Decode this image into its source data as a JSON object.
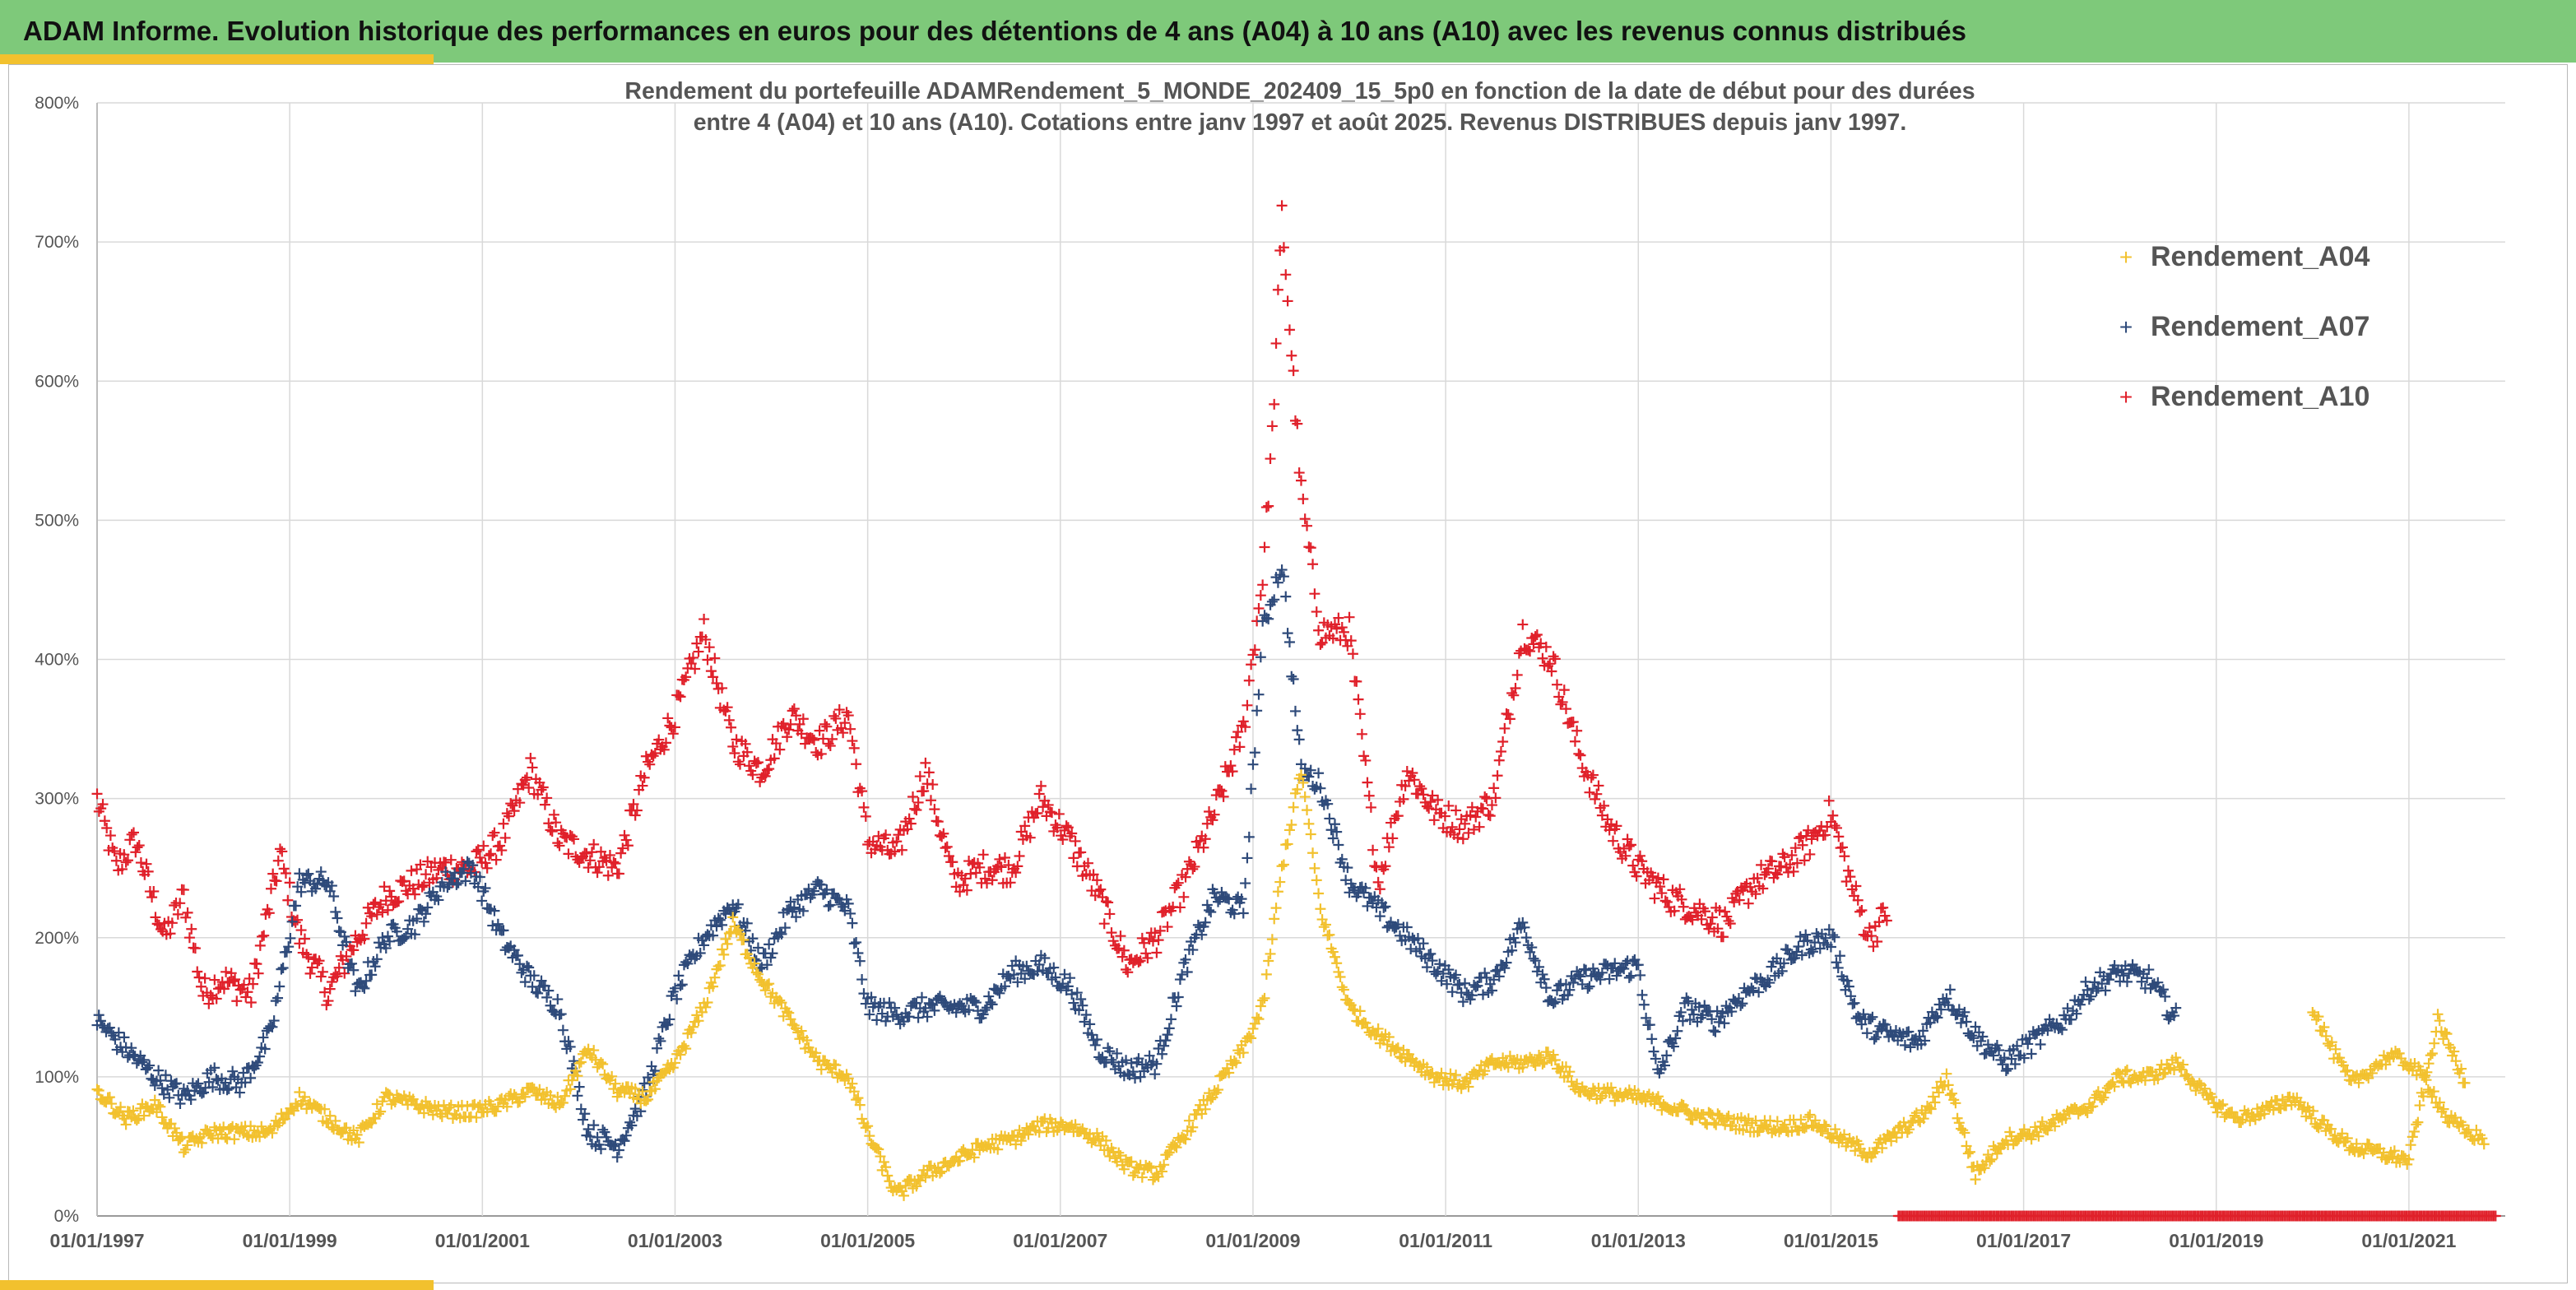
{
  "banner": {
    "title": "ADAM Informe. Evolution historique des performances en euros pour des détentions de 4 ans (A04) à 10 ans (A10) avec les revenus connus distribués"
  },
  "colors": {
    "banner_bg": "#7ec97a",
    "accent": "#f2c12e",
    "A04": "#f2c12e",
    "A07": "#2e4a7a",
    "A10": "#e0202a"
  },
  "chart_data": {
    "type": "scatter",
    "title_line1": "Rendement du portefeuille ADAMRendement_5_MONDE_202409_15_5p0  en fonction de la date de début pour des durées",
    "title_line2": "entre 4 (A04) et 10 ans (A10). Cotations entre janv 1997 et août 2025. Revenus DISTRIBUES depuis janv 1997.",
    "marker": "+",
    "xlim": [
      "01/01/1997",
      "31/12/2021"
    ],
    "x_tick_labels": [
      "01/01/1997",
      "01/01/1999",
      "01/01/2001",
      "01/01/2003",
      "01/01/2005",
      "01/01/2007",
      "01/01/2009",
      "01/01/2011",
      "01/01/2013",
      "01/01/2015",
      "01/01/2017",
      "01/01/2019",
      "01/01/2021"
    ],
    "ylim": [
      0,
      800
    ],
    "y_tick_labels": [
      "0%",
      "100%",
      "200%",
      "300%",
      "400%",
      "500%",
      "600%",
      "700%",
      "800%"
    ],
    "grid": true,
    "legend_position": "top-right",
    "series": [
      {
        "name": "Rendement_A04",
        "color": "#f2c12e",
        "x": [
          1997.0,
          1997.3,
          1997.6,
          1997.9,
          1998.2,
          1998.5,
          1998.8,
          1999.1,
          1999.4,
          1999.7,
          2000.0,
          2000.3,
          2000.6,
          2000.9,
          2001.2,
          2001.5,
          2001.8,
          2002.1,
          2002.4,
          2002.7,
          2003.0,
          2003.3,
          2003.6,
          2003.9,
          2004.2,
          2004.5,
          2004.8,
          2005.0,
          2005.3,
          2005.6,
          2005.9,
          2006.2,
          2006.5,
          2006.8,
          2007.1,
          2007.4,
          2007.7,
          2008.0,
          2008.3,
          2008.6,
          2008.9,
          2009.1,
          2009.3,
          2009.5,
          2009.7,
          2010.0,
          2010.3,
          2010.6,
          2010.9,
          2011.2,
          2011.5,
          2011.8,
          2012.1,
          2012.4,
          2012.7,
          2013.0,
          2013.3,
          2013.6,
          2013.9,
          2014.2,
          2014.5,
          2014.8,
          2015.1,
          2015.4,
          2015.7,
          2016.0,
          2016.2,
          2016.5,
          2016.8,
          2017.1,
          2017.4,
          2017.7,
          2018.0,
          2018.3,
          2018.6,
          2018.9,
          2019.2,
          2019.5,
          2019.8,
          2020.1,
          2020.4,
          2020.7,
          2021.0,
          2021.3,
          2021.6
        ],
        "y": [
          90,
          70,
          80,
          50,
          60,
          60,
          60,
          85,
          70,
          55,
          85,
          80,
          75,
          75,
          80,
          90,
          80,
          120,
          90,
          85,
          110,
          150,
          210,
          170,
          140,
          110,
          100,
          60,
          15,
          30,
          40,
          50,
          55,
          65,
          65,
          55,
          35,
          30,
          60,
          90,
          120,
          150,
          250,
          320,
          220,
          150,
          130,
          115,
          100,
          95,
          110,
          110,
          115,
          90,
          88,
          85,
          80,
          72,
          68,
          65,
          64,
          68,
          55,
          45,
          60,
          75,
          100,
          30,
          55,
          60,
          70,
          80,
          100,
          100,
          110,
          85,
          70,
          75,
          85,
          65,
          50,
          45,
          40,
          140,
          95
        ],
        "x_tail": [
          2020.0,
          2020.2,
          2020.4,
          2020.6,
          2020.8,
          2021.0,
          2021.2,
          2021.4,
          2021.6,
          2021.8
        ],
        "y_tail": [
          150,
          120,
          95,
          105,
          115,
          110,
          95,
          70,
          60,
          55
        ]
      },
      {
        "name": "Rendement_A07",
        "color": "#2e4a7a",
        "x": [
          1997.0,
          1997.3,
          1997.6,
          1997.9,
          1998.2,
          1998.5,
          1998.8,
          1999.1,
          1999.4,
          1999.7,
          2000.0,
          2000.3,
          2000.6,
          2000.9,
          2001.2,
          2001.5,
          2001.8,
          2002.1,
          2002.4,
          2002.7,
          2003.0,
          2003.3,
          2003.6,
          2003.9,
          2004.2,
          2004.5,
          2004.8,
          2005.0,
          2005.3,
          2005.6,
          2005.9,
          2006.2,
          2006.5,
          2006.8,
          2007.1,
          2007.4,
          2007.7,
          2008.0,
          2008.3,
          2008.6,
          2008.9,
          2009.1,
          2009.3,
          2009.5,
          2009.7,
          2010.0,
          2010.3,
          2010.6,
          2010.9,
          2011.2,
          2011.5,
          2011.8,
          2012.1,
          2012.4,
          2012.7,
          2013.0,
          2013.2,
          2013.5,
          2013.8,
          2014.1,
          2014.4,
          2014.7,
          2015.0,
          2015.3,
          2015.6,
          2015.9,
          2016.2,
          2016.5,
          2016.8,
          2017.1,
          2017.4,
          2017.7,
          2018.0,
          2018.3,
          2018.6
        ],
        "y": [
          140,
          120,
          100,
          85,
          100,
          95,
          130,
          240,
          240,
          160,
          200,
          210,
          240,
          250,
          200,
          170,
          150,
          60,
          50,
          90,
          160,
          200,
          225,
          180,
          220,
          235,
          220,
          150,
          145,
          150,
          150,
          150,
          175,
          180,
          165,
          120,
          105,
          110,
          180,
          230,
          220,
          420,
          470,
          320,
          310,
          240,
          220,
          200,
          180,
          160,
          170,
          210,
          155,
          170,
          175,
          180,
          100,
          150,
          140,
          160,
          175,
          195,
          200,
          140,
          130,
          125,
          160,
          130,
          110,
          125,
          140,
          165,
          175,
          170,
          140
        ]
      },
      {
        "name": "Rendement_A10",
        "color": "#e0202a",
        "x": [
          1997.0,
          1997.2,
          1997.4,
          1997.7,
          1997.9,
          1998.1,
          1998.3,
          1998.6,
          1998.9,
          1999.1,
          1999.4,
          1999.7,
          2000.0,
          2000.3,
          2000.6,
          2000.9,
          2001.2,
          2001.5,
          2001.8,
          2002.1,
          2002.4,
          2002.7,
          2003.0,
          2003.3,
          2003.6,
          2003.9,
          2004.2,
          2004.5,
          2004.8,
          2005.0,
          2005.3,
          2005.6,
          2005.9,
          2006.2,
          2006.5,
          2006.8,
          2007.1,
          2007.4,
          2007.7,
          2008.0,
          2008.3,
          2008.6,
          2008.9,
          2009.1,
          2009.2,
          2009.3,
          2009.5,
          2009.7,
          2010.0,
          2010.3,
          2010.6,
          2010.9,
          2011.2,
          2011.5,
          2011.8,
          2012.1,
          2012.4,
          2012.7,
          2013.0,
          2013.3,
          2013.6,
          2013.9,
          2014.2,
          2014.5,
          2014.8,
          2015.0,
          2015.2,
          2015.4,
          2015.6
        ],
        "y": [
          300,
          250,
          270,
          200,
          230,
          160,
          170,
          160,
          260,
          200,
          160,
          200,
          230,
          240,
          250,
          250,
          270,
          320,
          270,
          260,
          250,
          320,
          360,
          420,
          340,
          320,
          360,
          340,
          360,
          270,
          260,
          320,
          240,
          250,
          250,
          300,
          270,
          230,
          180,
          200,
          240,
          290,
          350,
          460,
          560,
          720,
          520,
          420,
          420,
          240,
          320,
          290,
          280,
          300,
          420,
          400,
          330,
          280,
          250,
          230,
          220,
          210,
          240,
          250,
          270,
          290,
          240,
          200,
          220
        ],
        "x_zero": [
          2015.7,
          2021.9
        ],
        "y_zero": [
          0,
          0
        ]
      }
    ]
  }
}
